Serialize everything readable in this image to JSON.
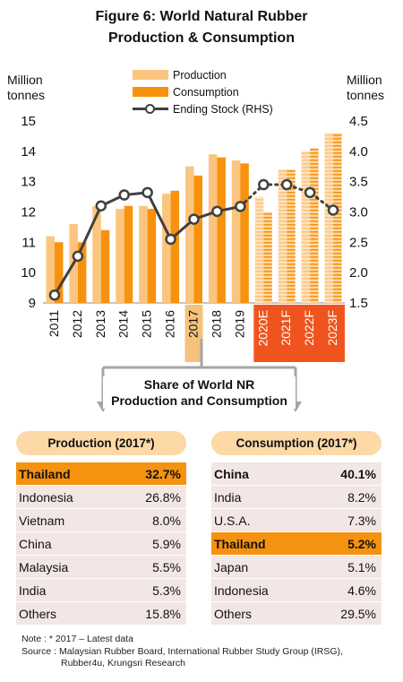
{
  "title": [
    "Figure 6: World Natural Rubber",
    "Production & Consumption"
  ],
  "axis_left_unit": [
    "Million",
    "tonnes"
  ],
  "axis_right_unit": [
    "Million",
    "tonnes"
  ],
  "legend": {
    "production": "Production",
    "consumption": "Consumption",
    "ending_stock": "Ending Stock (RHS)"
  },
  "colors": {
    "production": "#fcc57f",
    "consumption": "#f7920f",
    "line": "#404040",
    "forecast_bg": "#f0541e",
    "highlight_bar": "#f4c27a",
    "arrow": "#a6a6a6"
  },
  "chart_data": {
    "type": "bar",
    "categories": [
      "2011",
      "2012",
      "2013",
      "2014",
      "2015",
      "2016",
      "2017",
      "2018",
      "2019",
      "2020E",
      "2021F",
      "2022F",
      "2023F"
    ],
    "forecast_categories": [
      "2020E",
      "2021F",
      "2022F",
      "2023F"
    ],
    "highlight_category": "2017",
    "series": [
      {
        "name": "Production",
        "values": [
          11.2,
          11.6,
          12.2,
          12.1,
          12.2,
          12.6,
          13.5,
          13.9,
          13.7,
          12.5,
          13.4,
          14.0,
          14.6
        ]
      },
      {
        "name": "Consumption",
        "values": [
          11.0,
          11.0,
          11.4,
          12.2,
          12.1,
          12.7,
          13.2,
          13.8,
          13.6,
          12.0,
          13.4,
          14.1,
          14.6
        ]
      },
      {
        "name": "Ending Stock (RHS)",
        "axis": "right",
        "values": [
          1.63,
          2.27,
          3.1,
          3.28,
          3.32,
          2.55,
          2.88,
          3.01,
          3.09,
          3.45,
          3.45,
          3.32,
          3.03
        ]
      }
    ],
    "ylim": [
      9,
      15
    ],
    "yticks": [
      9,
      10,
      11,
      12,
      13,
      14,
      15
    ],
    "y2lim": [
      1.5,
      4.5
    ],
    "y2ticks": [
      "1.5",
      "2.0",
      "2.5",
      "3.0",
      "3.5",
      "4.0",
      "4.5"
    ],
    "legend_position": "top"
  },
  "share_box": [
    "Share of World NR",
    "Production and Consumption"
  ],
  "production_table": {
    "header": "Production (2017*)",
    "rows": [
      {
        "country": "Thailand",
        "value": "32.7%",
        "highlight": true
      },
      {
        "country": "Indonesia",
        "value": "26.8%"
      },
      {
        "country": "Vietnam",
        "value": "8.0%"
      },
      {
        "country": "China",
        "value": "5.9%"
      },
      {
        "country": "Malaysia",
        "value": "5.5%"
      },
      {
        "country": "India",
        "value": "5.3%"
      },
      {
        "country": "Others",
        "value": "15.8%"
      }
    ]
  },
  "consumption_table": {
    "header": "Consumption (2017*)",
    "rows": [
      {
        "country": "China",
        "value": "40.1%",
        "bold": true
      },
      {
        "country": "India",
        "value": "8.2%"
      },
      {
        "country": "U.S.A.",
        "value": "7.3%"
      },
      {
        "country": "Thailand",
        "value": "5.2%",
        "highlight": true
      },
      {
        "country": "Japan",
        "value": "5.1%"
      },
      {
        "country": "Indonesia",
        "value": "4.6%"
      },
      {
        "country": "Others",
        "value": "29.5%"
      }
    ]
  },
  "note": [
    "Note : * 2017 – Latest data",
    "Source : Malaysian Rubber Board, International Rubber Study Group (IRSG),",
    "Rubber4u, Krungsri Research"
  ]
}
